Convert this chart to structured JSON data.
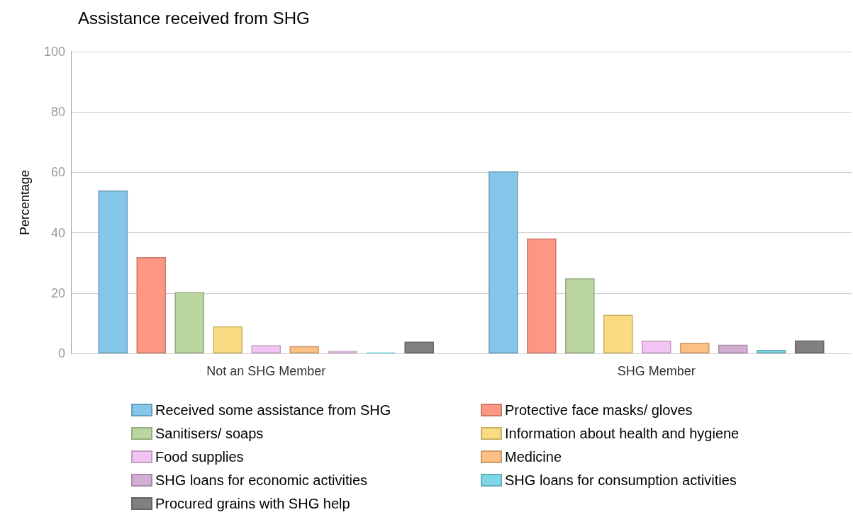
{
  "chart_data": {
    "type": "bar",
    "title": "Assistance received from SHG",
    "ylabel": "Percentage",
    "categories": [
      "Not an SHG Member",
      "SHG Member"
    ],
    "series": [
      {
        "name": "Received some assistance from SHG",
        "color": "#85c6ea",
        "values": [
          54.0,
          60.3
        ]
      },
      {
        "name": "Protective face masks/ gloves",
        "color": "#fd9784",
        "values": [
          31.9,
          38.1
        ]
      },
      {
        "name": "Sanitisers/ soaps",
        "color": "#bcd6a1",
        "values": [
          20.3,
          24.9
        ]
      },
      {
        "name": "Information about health and hygiene",
        "color": "#fbdb82",
        "values": [
          9.0,
          12.8
        ]
      },
      {
        "name": "Food supplies",
        "color": "#f1c4f3",
        "values": [
          2.7,
          4.2
        ]
      },
      {
        "name": "Medicine",
        "color": "#fdbf85",
        "values": [
          2.4,
          3.5
        ]
      },
      {
        "name": "SHG loans for economic activities",
        "color": "#d3aed3",
        "values": [
          0.8,
          2.9
        ]
      },
      {
        "name": "SHG loans for consumption activities",
        "color": "#7ed7e6",
        "values": [
          0.3,
          1.2
        ]
      },
      {
        "name": "Procured grains with SHG help",
        "color": "#808080",
        "values": [
          3.9,
          4.3
        ]
      }
    ],
    "ylim": [
      0,
      100
    ],
    "yticks": [
      0,
      20,
      40,
      60,
      80,
      100
    ],
    "grid": "y",
    "legend": "bottom"
  }
}
